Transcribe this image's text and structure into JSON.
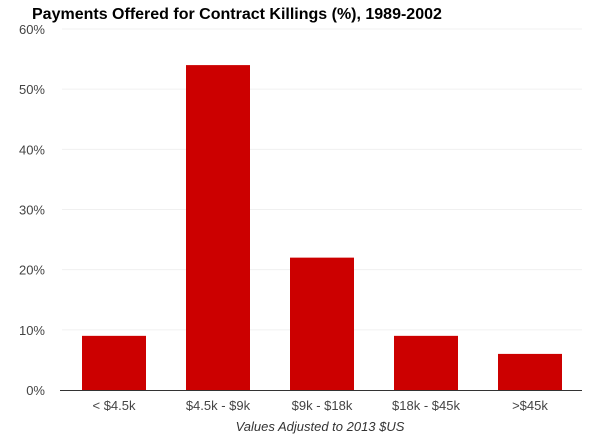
{
  "chart_data": {
    "type": "bar",
    "title": "Payments Offered for Contract Killings (%), 1989-2002",
    "xlabel": "Values Adjusted to 2013 $US",
    "ylabel": "",
    "categories": [
      "< $4.5k",
      "$4.5k - $9k",
      "$9k - $18k",
      "$18k - $45k",
      ">$45k"
    ],
    "values": [
      9,
      54,
      22,
      9,
      6
    ],
    "ylim": [
      0,
      60
    ],
    "yticks": [
      "0%",
      "10%",
      "20%",
      "30%",
      "40%",
      "50%",
      "60%"
    ],
    "grid": true,
    "legend": "none",
    "bar_color": "#cc0000"
  }
}
